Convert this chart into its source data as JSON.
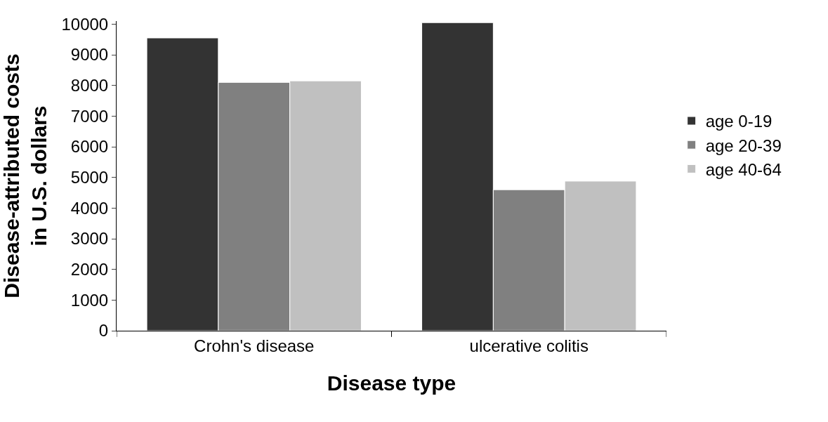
{
  "chart_data": {
    "type": "bar",
    "xlabel": "Disease type",
    "ylabel": "Disease-attributed costs\nin U.S. dollars",
    "categories": [
      "Crohn's disease",
      "ulcerative colitis"
    ],
    "series": [
      {
        "name": "age 0-19",
        "color": "#333333",
        "values": [
          9550,
          10050
        ]
      },
      {
        "name": "age 20-39",
        "color": "#808080",
        "values": [
          8100,
          4600
        ]
      },
      {
        "name": "age 40-64",
        "color": "#c0c0c0",
        "values": [
          8150,
          4880
        ]
      }
    ],
    "ylim": [
      0,
      10100
    ],
    "yticks": [
      0,
      1000,
      2000,
      3000,
      4000,
      5000,
      6000,
      7000,
      8000,
      9000,
      10000
    ],
    "legend": "right"
  }
}
